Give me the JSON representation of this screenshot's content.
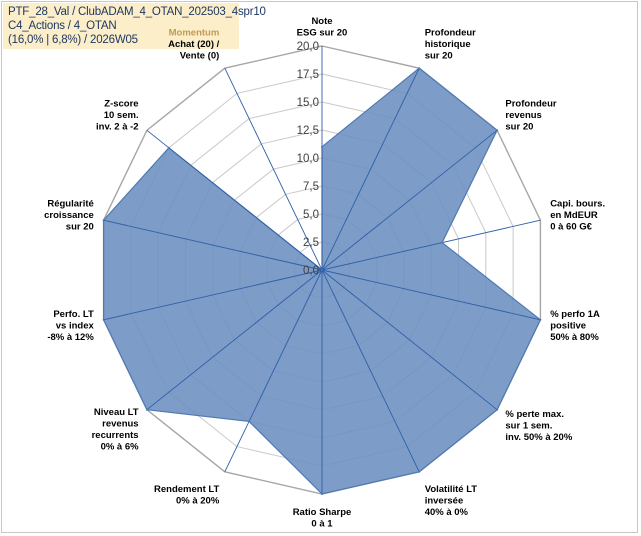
{
  "info_box": {
    "line1": "PTF_28_Val / ClubADAM_4_OTAN_202503_4spr10",
    "line2": "C4_Actions / 4_OTAN",
    "line3": "(16,0% | 6,8%) / 2026W05"
  },
  "chart_data": {
    "type": "radar",
    "title": "",
    "rmin": 0,
    "rmax": 20,
    "ticks": [
      "0,0",
      "2,5",
      "5,0",
      "7,5",
      "10,0",
      "12,5",
      "15,0",
      "17,5",
      "20,0"
    ],
    "tick_values": [
      0,
      2.5,
      5,
      7.5,
      10,
      12.5,
      15,
      17.5,
      20
    ],
    "axes": [
      {
        "lines": [
          "Note",
          "ESG sur 20"
        ]
      },
      {
        "lines": [
          "Profondeur",
          "historique",
          "sur 20"
        ]
      },
      {
        "lines": [
          "Profondeur",
          "revenus",
          "sur 20"
        ]
      },
      {
        "lines": [
          "Capi. bours.",
          "en MdEUR",
          "0 à 60 G€"
        ]
      },
      {
        "lines": [
          "% perfo 1A",
          "positive",
          "50% à 80%"
        ]
      },
      {
        "lines": [
          "% perte max.",
          "sur 1 sem.",
          "inv. 50% à 20%"
        ]
      },
      {
        "lines": [
          "Volatilité LT",
          "inversée",
          "40% à 0%"
        ]
      },
      {
        "lines": [
          "Ratio Sharpe",
          "0 à 1"
        ]
      },
      {
        "lines": [
          "Rendement LT",
          "0% à 20%"
        ]
      },
      {
        "lines": [
          "Niveau LT",
          "revenus",
          "recurrents",
          "0% à 6%"
        ]
      },
      {
        "lines": [
          "Perfo. LT",
          "vs index",
          "-8% à 12%"
        ]
      },
      {
        "lines": [
          "Régularité",
          "croissance",
          "sur 20"
        ]
      },
      {
        "lines": [
          "Z-score",
          "10 sem.",
          "inv. 2 à -2"
        ]
      },
      {
        "lines": [
          "Momentum",
          "Achat (20) /",
          "Vente (0)"
        ],
        "highlight_first": true
      }
    ],
    "values": [
      11,
      20,
      20,
      11,
      20,
      20,
      20,
      20,
      15,
      20,
      20,
      20,
      17.5,
      0
    ],
    "series_color": "#4f79b2",
    "fill_color": "#6b8fc0",
    "grid": true
  }
}
